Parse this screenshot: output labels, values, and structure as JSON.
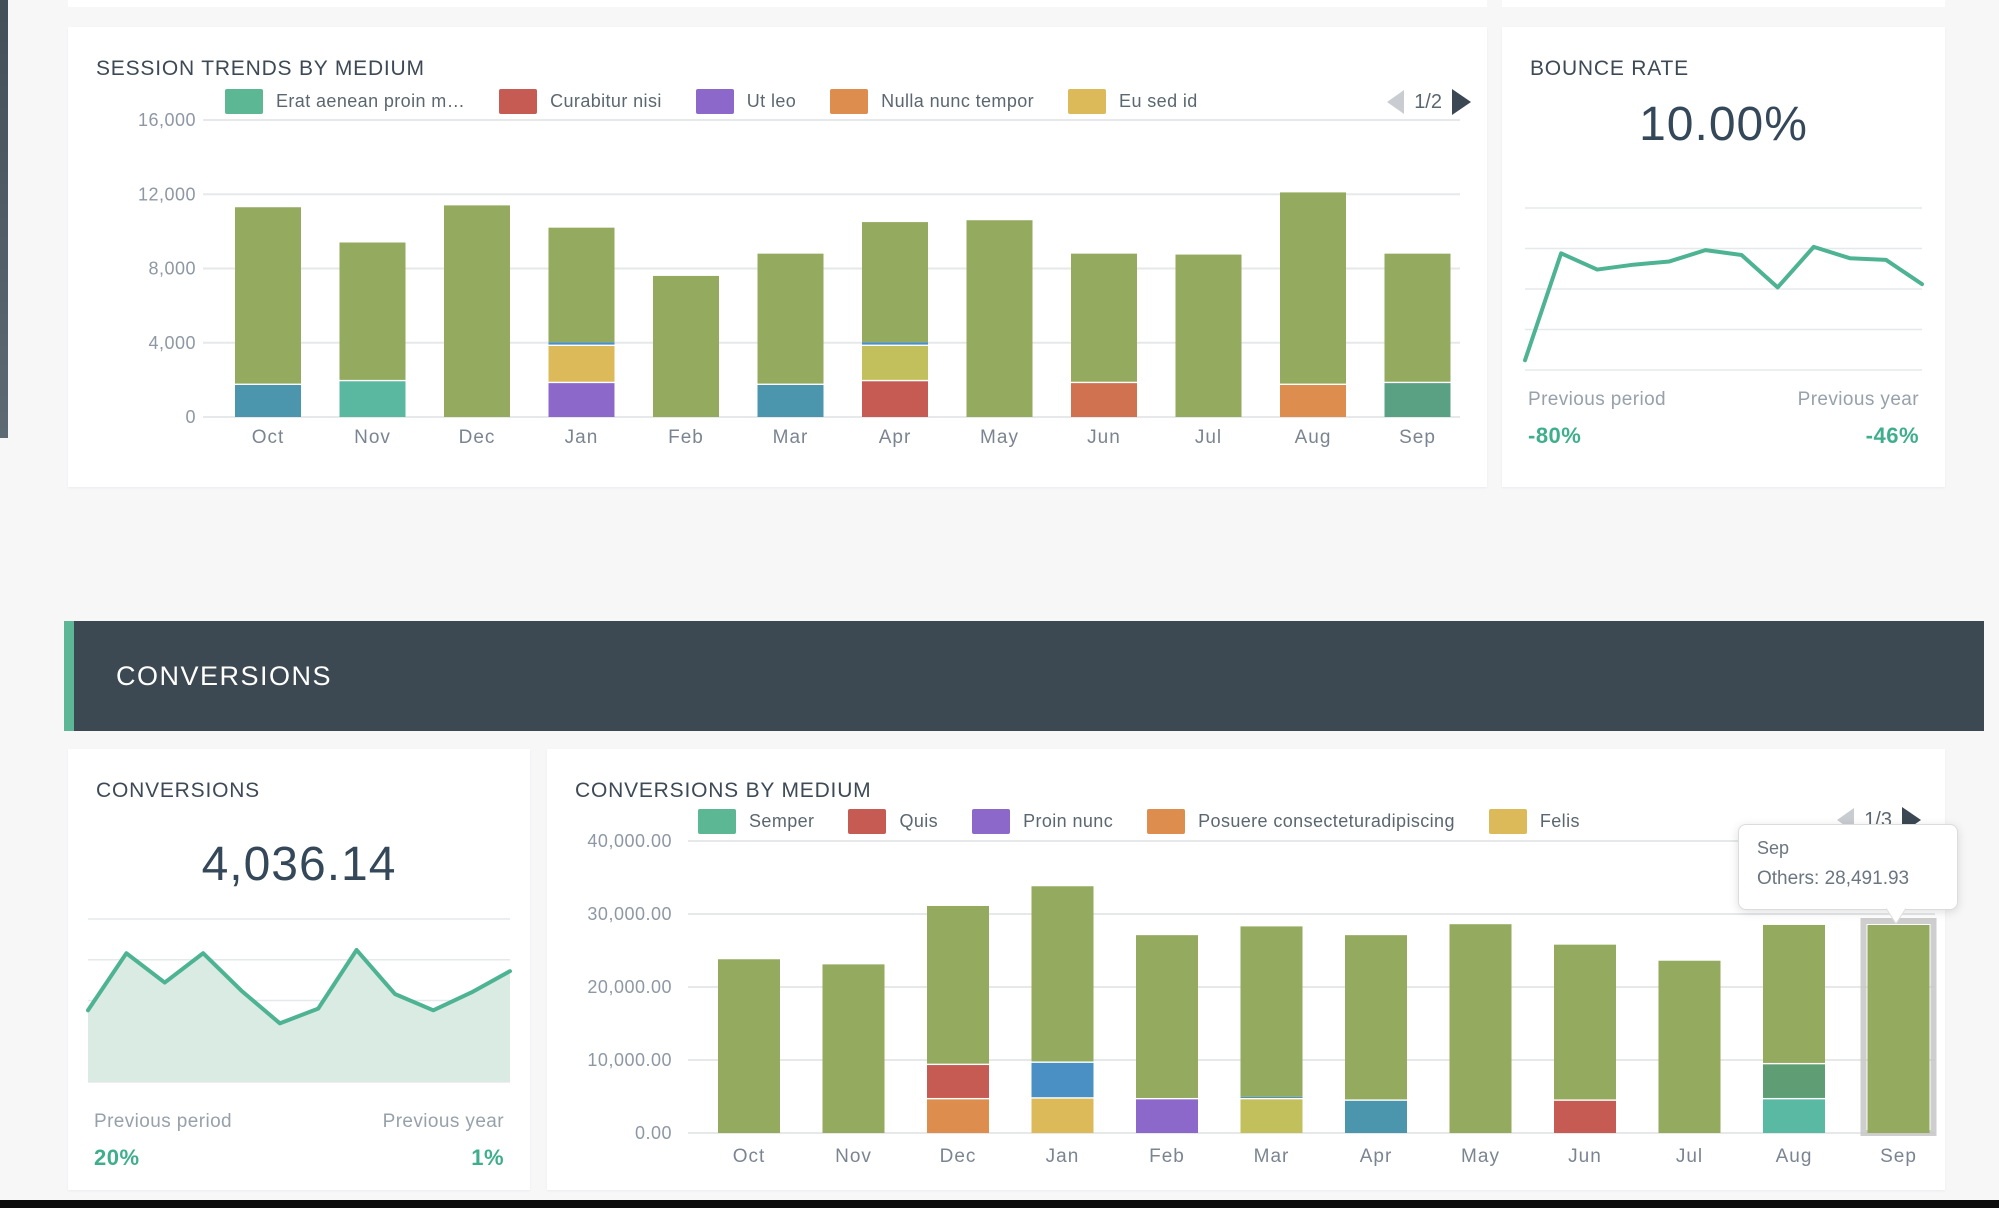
{
  "page": {
    "background": "#f7f7f8",
    "bottom_bar_color": "#0c0c0c",
    "sidebar_strip_color": "#47535d"
  },
  "sessions_card": {
    "title": "SESSION TRENDS BY MEDIUM",
    "pagination": "1/2"
  },
  "bounce_card": {
    "title": "BOUNCE RATE",
    "value": "10.00%",
    "prev_period_label": "Previous period",
    "prev_period_value": "-80%",
    "prev_year_label": "Previous year",
    "prev_year_value": "-46%"
  },
  "section_header": {
    "label": "CONVERSIONS",
    "bg": "#3c4952",
    "accent": "#5bb795"
  },
  "conversions_card": {
    "title": "CONVERSIONS",
    "value": "4,036.14",
    "prev_period_label": "Previous period",
    "prev_period_value": "20%",
    "prev_year_label": "Previous year",
    "prev_year_value": "1%"
  },
  "conversions_by_medium_card": {
    "title": "CONVERSIONS BY MEDIUM",
    "pagination": "1/3",
    "tooltip": {
      "line1": "Sep",
      "line2": "Others: 28,491.93"
    }
  },
  "colors": {
    "others_green": "#93aa5f",
    "spark_line": "#4db392",
    "spark_fill": "#d9ebe2",
    "percent_green": "#3fae8c",
    "grid_line": "#e6e8ea",
    "axis_text": "#8e98a4",
    "month_text": "#7a8591",
    "highlight_outline": "#c6c6c6"
  },
  "chart_data": [
    {
      "id": "sessions_by_medium",
      "type": "bar",
      "stacked": true,
      "title": "SESSION TRENDS BY MEDIUM",
      "legend": [
        {
          "label": "Erat aenean proin m…",
          "color": "#5cb795"
        },
        {
          "label": "Curabitur nisi",
          "color": "#c65b53"
        },
        {
          "label": "Ut leo",
          "color": "#8d68cb"
        },
        {
          "label": "Nulla nunc tempor",
          "color": "#dd8d4d"
        },
        {
          "label": "Eu sed id",
          "color": "#dcba59"
        }
      ],
      "categories": [
        "Oct",
        "Nov",
        "Dec",
        "Jan",
        "Feb",
        "Mar",
        "Apr",
        "May",
        "Jun",
        "Jul",
        "Aug",
        "Sep"
      ],
      "ylim": [
        0,
        16000
      ],
      "y_ticks": [
        "0",
        "4,000",
        "8,000",
        "12,000",
        "16,000"
      ],
      "grid": true,
      "legend_position": "top",
      "bars": [
        {
          "month": "Oct",
          "segments": [
            {
              "color": "#4b96ad",
              "value": 1800
            },
            {
              "color": "#93aa5f",
              "value": 9500
            }
          ]
        },
        {
          "month": "Nov",
          "segments": [
            {
              "color": "#5bb8a0",
              "value": 2000
            },
            {
              "color": "#93aa5f",
              "value": 7400
            }
          ]
        },
        {
          "month": "Dec",
          "segments": [
            {
              "color": "#93aa5f",
              "value": 11400
            }
          ]
        },
        {
          "month": "Jan",
          "segments": [
            {
              "color": "#8d68cb",
              "value": 1900
            },
            {
              "color": "#dcba59",
              "value": 2000
            },
            {
              "color": "#4a90c4",
              "value": 130
            },
            {
              "color": "#93aa5f",
              "value": 6170
            }
          ]
        },
        {
          "month": "Feb",
          "segments": [
            {
              "color": "#93aa5f",
              "value": 7600
            }
          ]
        },
        {
          "month": "Mar",
          "segments": [
            {
              "color": "#4b96ad",
              "value": 1800
            },
            {
              "color": "#93aa5f",
              "value": 7000
            }
          ]
        },
        {
          "month": "Apr",
          "segments": [
            {
              "color": "#c65b53",
              "value": 2000
            },
            {
              "color": "#c2c05d",
              "value": 1900
            },
            {
              "color": "#4a90c4",
              "value": 130
            },
            {
              "color": "#93aa5f",
              "value": 6470
            }
          ]
        },
        {
          "month": "May",
          "segments": [
            {
              "color": "#93aa5f",
              "value": 10600
            }
          ]
        },
        {
          "month": "Jun",
          "segments": [
            {
              "color": "#d0714f",
              "value": 1900
            },
            {
              "color": "#93aa5f",
              "value": 6900
            }
          ]
        },
        {
          "month": "Jul",
          "segments": [
            {
              "color": "#93aa5f",
              "value": 8750
            }
          ]
        },
        {
          "month": "Aug",
          "segments": [
            {
              "color": "#dd8d4d",
              "value": 1800
            },
            {
              "color": "#93aa5f",
              "value": 10300
            }
          ]
        },
        {
          "month": "Sep",
          "segments": [
            {
              "color": "#5aa083",
              "value": 1900
            },
            {
              "color": "#93aa5f",
              "value": 6900
            }
          ]
        }
      ]
    },
    {
      "id": "bounce_rate_spark",
      "type": "line",
      "color": "#4db392",
      "values_pct_of_height": [
        6,
        72,
        62,
        65,
        67,
        74,
        71,
        51,
        76,
        69,
        68,
        53
      ]
    },
    {
      "id": "conversions_spark",
      "type": "area",
      "color": "#4db392",
      "fill": "#d9ebe2",
      "values_pct_of_height": [
        44,
        79,
        61,
        79,
        56,
        36,
        45,
        81,
        54,
        44,
        55,
        68
      ]
    },
    {
      "id": "conversions_by_medium",
      "type": "bar",
      "stacked": true,
      "title": "CONVERSIONS BY MEDIUM",
      "legend": [
        {
          "label": "Semper",
          "color": "#5cb795"
        },
        {
          "label": "Quis",
          "color": "#c65b53"
        },
        {
          "label": "Proin nunc",
          "color": "#8d68cb"
        },
        {
          "label": "Posuere consecteturadipiscing",
          "color": "#dd8d4d"
        },
        {
          "label": "Felis",
          "color": "#dcba59"
        }
      ],
      "categories": [
        "Oct",
        "Nov",
        "Dec",
        "Jan",
        "Feb",
        "Mar",
        "Apr",
        "May",
        "Jun",
        "Jul",
        "Aug",
        "Sep"
      ],
      "ylim": [
        0,
        40000
      ],
      "y_ticks": [
        "0.00",
        "10,000.00",
        "20,000.00",
        "30,000.00",
        "40,000.00"
      ],
      "grid": true,
      "legend_position": "top",
      "bars": [
        {
          "month": "Oct",
          "segments": [
            {
              "color": "#93aa5f",
              "value": 23800
            }
          ]
        },
        {
          "month": "Nov",
          "segments": [
            {
              "color": "#93aa5f",
              "value": 23100
            }
          ]
        },
        {
          "month": "Dec",
          "segments": [
            {
              "color": "#dd8d4d",
              "value": 4800
            },
            {
              "color": "#c65b53",
              "value": 4700
            },
            {
              "color": "#93aa5f",
              "value": 21600
            }
          ]
        },
        {
          "month": "Jan",
          "segments": [
            {
              "color": "#dcba59",
              "value": 4900
            },
            {
              "color": "#4a90c4",
              "value": 4900
            },
            {
              "color": "#93aa5f",
              "value": 24000
            }
          ]
        },
        {
          "month": "Feb",
          "segments": [
            {
              "color": "#8d68cb",
              "value": 4800
            },
            {
              "color": "#93aa5f",
              "value": 22300
            }
          ]
        },
        {
          "month": "Mar",
          "segments": [
            {
              "color": "#c2c05d",
              "value": 4800
            },
            {
              "color": "#4a90c4",
              "value": 150
            },
            {
              "color": "#93aa5f",
              "value": 23350
            }
          ]
        },
        {
          "month": "Apr",
          "segments": [
            {
              "color": "#4b96ad",
              "value": 4600
            },
            {
              "color": "#93aa5f",
              "value": 22500
            }
          ]
        },
        {
          "month": "May",
          "segments": [
            {
              "color": "#93aa5f",
              "value": 28600
            }
          ]
        },
        {
          "month": "Jun",
          "segments": [
            {
              "color": "#c65b53",
              "value": 4600
            },
            {
              "color": "#93aa5f",
              "value": 21200
            }
          ]
        },
        {
          "month": "Jul",
          "segments": [
            {
              "color": "#93aa5f",
              "value": 23600
            }
          ]
        },
        {
          "month": "Aug",
          "segments": [
            {
              "color": "#59b9a2",
              "value": 4800
            },
            {
              "color": "#5f9e74",
              "value": 4800
            },
            {
              "color": "#93aa5f",
              "value": 18900
            }
          ]
        },
        {
          "month": "Sep",
          "segments": [
            {
              "color": "#93aa5f",
              "value": 28491.93
            }
          ],
          "highlight": true
        }
      ]
    }
  ]
}
